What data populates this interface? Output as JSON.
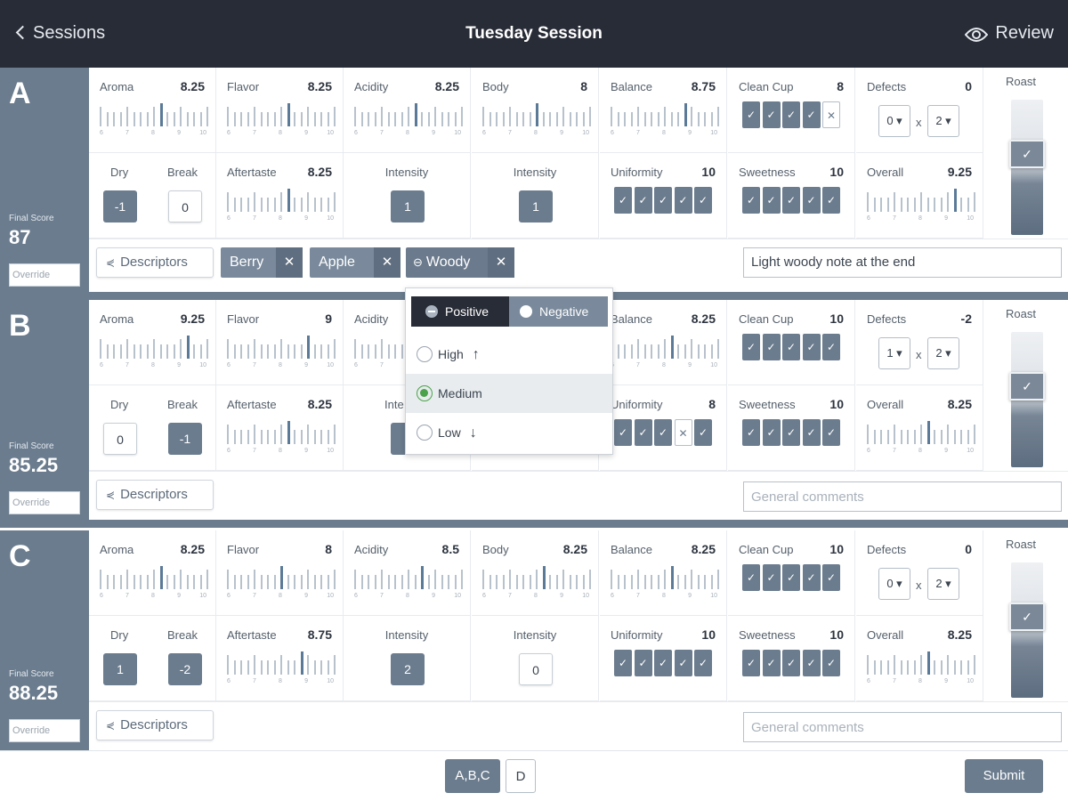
{
  "header": {
    "back_label": "Sessions",
    "title": "Tuesday Session",
    "review_label": "Review"
  },
  "labels": {
    "final_score": "Final Score",
    "override": "Override",
    "roast": "Roast",
    "descriptors": "Descriptors",
    "dry": "Dry",
    "break": "Break",
    "intensity": "Intensity",
    "x": "x"
  },
  "colors": {
    "accent": "#6b7c8e",
    "header_bg": "#282c36",
    "selected_radio": "#4aa34a"
  },
  "scale_ticks": [
    "6",
    "7",
    "8",
    "9",
    "10"
  ],
  "samples": [
    {
      "letter": "A",
      "final_score": "87",
      "aroma": {
        "label": "Aroma",
        "value": "8.25",
        "score": 8.25
      },
      "flavor": {
        "label": "Flavor",
        "value": "8.25",
        "score": 8.25
      },
      "acidity": {
        "label": "Acidity",
        "value": "8.25",
        "score": 8.25
      },
      "body": {
        "label": "Body",
        "value": "8",
        "score": 8
      },
      "balance": {
        "label": "Balance",
        "value": "8.75",
        "score": 8.75
      },
      "clean_cup": {
        "label": "Clean Cup",
        "value": "8",
        "cups": [
          true,
          true,
          true,
          true,
          false
        ]
      },
      "defects": {
        "label": "Defects",
        "value": "0",
        "a": "0 ▾",
        "b": "2 ▾"
      },
      "dry": "-1",
      "break": "0",
      "aftertaste": {
        "label": "Aftertaste",
        "value": "8.25",
        "score": 8.25
      },
      "acidity_intensity": "1",
      "body_intensity": "1",
      "uniformity": {
        "label": "Uniformity",
        "value": "10",
        "cups": [
          true,
          true,
          true,
          true,
          true
        ]
      },
      "sweetness": {
        "label": "Sweetness",
        "value": "10",
        "cups": [
          true,
          true,
          true,
          true,
          true
        ]
      },
      "overall": {
        "label": "Overall",
        "value": "9.25",
        "score": 9.25
      },
      "tags": [
        "Berry",
        "Apple",
        "Woody"
      ],
      "comment": "Light woody note at the end",
      "roast_level": 0.4
    },
    {
      "letter": "B",
      "final_score": "85.25",
      "aroma": {
        "label": "Aroma",
        "value": "9.25",
        "score": 9.25
      },
      "flavor": {
        "label": "Flavor",
        "value": "9",
        "score": 9
      },
      "acidity": {
        "label": "Acidity"
      },
      "balance": {
        "label": "Balance",
        "value": "8.25",
        "score": 8.25
      },
      "clean_cup": {
        "label": "Clean Cup",
        "value": "10",
        "cups": [
          true,
          true,
          true,
          true,
          true
        ]
      },
      "defects": {
        "label": "Defects",
        "value": "-2",
        "a": "1 ▾",
        "b": "2 ▾"
      },
      "dry": "0",
      "break": "-1",
      "aftertaste": {
        "label": "Aftertaste",
        "value": "8.25",
        "score": 8.25
      },
      "acidity_intensity_label": "Inte",
      "uniformity": {
        "label": "Uniformity",
        "value": "8",
        "cups": [
          true,
          true,
          true,
          false,
          true
        ]
      },
      "sweetness": {
        "label": "Sweetness",
        "value": "10",
        "cups": [
          true,
          true,
          true,
          true,
          true
        ]
      },
      "overall": {
        "label": "Overall",
        "value": "8.25",
        "score": 8.25
      },
      "comment_placeholder": "General comments",
      "roast_level": 0.4
    },
    {
      "letter": "C",
      "final_score": "88.25",
      "aroma": {
        "label": "Aroma",
        "value": "8.25",
        "score": 8.25
      },
      "flavor": {
        "label": "Flavor",
        "value": "8",
        "score": 8
      },
      "acidity": {
        "label": "Acidity",
        "value": "8.5",
        "score": 8.5
      },
      "body": {
        "label": "Body",
        "value": "8.25",
        "score": 8.25
      },
      "balance": {
        "label": "Balance",
        "value": "8.25",
        "score": 8.25
      },
      "clean_cup": {
        "label": "Clean Cup",
        "value": "10",
        "cups": [
          true,
          true,
          true,
          true,
          true
        ]
      },
      "defects": {
        "label": "Defects",
        "value": "0",
        "a": "0 ▾",
        "b": "2 ▾"
      },
      "dry": "1",
      "break": "-2",
      "aftertaste": {
        "label": "Aftertaste",
        "value": "8.75",
        "score": 8.75
      },
      "acidity_intensity": "2",
      "body_intensity": "0",
      "uniformity": {
        "label": "Uniformity",
        "value": "10",
        "cups": [
          true,
          true,
          true,
          true,
          true
        ]
      },
      "sweetness": {
        "label": "Sweetness",
        "value": "10",
        "cups": [
          true,
          true,
          true,
          true,
          true
        ]
      },
      "overall": {
        "label": "Overall",
        "value": "8.25",
        "score": 8.25
      },
      "comment_placeholder": "General comments",
      "roast_level": 0.4
    }
  ],
  "popup": {
    "positive": "Positive",
    "negative": "Negative",
    "options": [
      "High",
      "Medium",
      "Low"
    ],
    "selected": "Medium"
  },
  "footer": {
    "group_abc": "A,B,C",
    "group_d": "D",
    "submit": "Submit"
  }
}
